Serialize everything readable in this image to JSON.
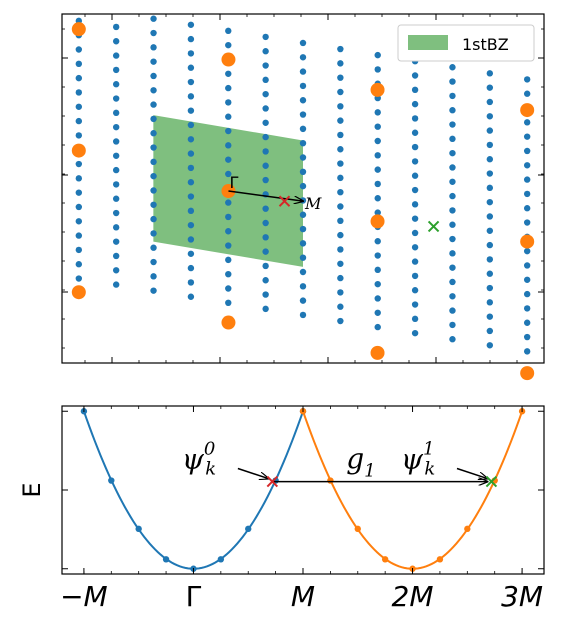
{
  "chart_data": [
    {
      "type": "scatter",
      "legend": {
        "label": "1stBZ",
        "color": "#7fbf7f",
        "placement": "top-right"
      },
      "lattice": {
        "color": "#1f77b4",
        "columns": 13,
        "rows": 20,
        "x_start": -0.67,
        "x_step": 0.3333,
        "y_start": -2.45,
        "y_step": 0.283,
        "shear": -0.18
      },
      "reciprocal_points": {
        "color": "#ff7f0e",
        "points": [
          [
            -4,
            3.2
          ],
          [
            -4,
            0.8
          ],
          [
            -4,
            -2.0
          ],
          [
            -1.33,
            2.6
          ],
          [
            -1.33,
            0.0
          ],
          [
            -1.33,
            -2.6
          ],
          [
            1.33,
            2.0
          ],
          [
            1.33,
            -0.6
          ],
          [
            1.33,
            -3.2
          ],
          [
            4,
            1.6
          ],
          [
            4,
            -1.0
          ],
          [
            4,
            -3.6
          ]
        ]
      },
      "bz": {
        "color": "#7fbf7f",
        "corners": [
          [
            -2.67,
            1.5
          ],
          [
            0,
            1.0
          ],
          [
            0,
            -1.5
          ],
          [
            -2.67,
            -1.0
          ]
        ]
      },
      "gamma_label": "Γ",
      "m_label": "M",
      "arrow": {
        "from": [
          -1.33,
          0.0
        ],
        "to": [
          -0.0,
          -0.2
        ]
      },
      "red_cross": [
        -0.33,
        -0.2
      ],
      "green_cross": [
        2.33,
        -0.7
      ],
      "xlim": [
        -4.3,
        4.3
      ],
      "ylim": [
        -3.4,
        3.5
      ]
    },
    {
      "type": "line",
      "ylabel": "E",
      "xticks": [
        "−M",
        "Γ",
        "M",
        "2M",
        "3M"
      ],
      "xtick_values": [
        -1,
        0,
        1,
        2,
        3
      ],
      "xlim": [
        -1.2,
        3.2
      ],
      "ylim": [
        -0.05,
        1.55
      ],
      "series": [
        {
          "color": "#1f77b4",
          "x": [
            -1.0,
            -0.75,
            -0.5,
            -0.25,
            0.0,
            0.25,
            0.5,
            0.75,
            1.0
          ],
          "y": [
            1.5,
            0.84,
            0.38,
            0.09,
            0.0,
            0.09,
            0.38,
            0.84,
            1.5
          ]
        },
        {
          "color": "#ff7f0e",
          "x": [
            1.0,
            1.25,
            1.5,
            1.75,
            2.0,
            2.25,
            2.5,
            2.75,
            3.0
          ],
          "y": [
            1.5,
            0.84,
            0.38,
            0.09,
            0.0,
            0.09,
            0.38,
            0.84,
            1.5
          ]
        }
      ],
      "red_cross": [
        0.72,
        0.83
      ],
      "green_cross": [
        2.72,
        0.83
      ],
      "psi0": {
        "base": "ψ",
        "sub": "k",
        "sup": "0",
        "x": 0.15,
        "y": 1.05
      },
      "psi1": {
        "base": "ψ",
        "sub": "k",
        "sup": "1",
        "x": 2.15,
        "y": 1.05
      },
      "g1": {
        "base": "g",
        "sub": "1",
        "x": 1.65,
        "y": 1.05
      }
    }
  ]
}
